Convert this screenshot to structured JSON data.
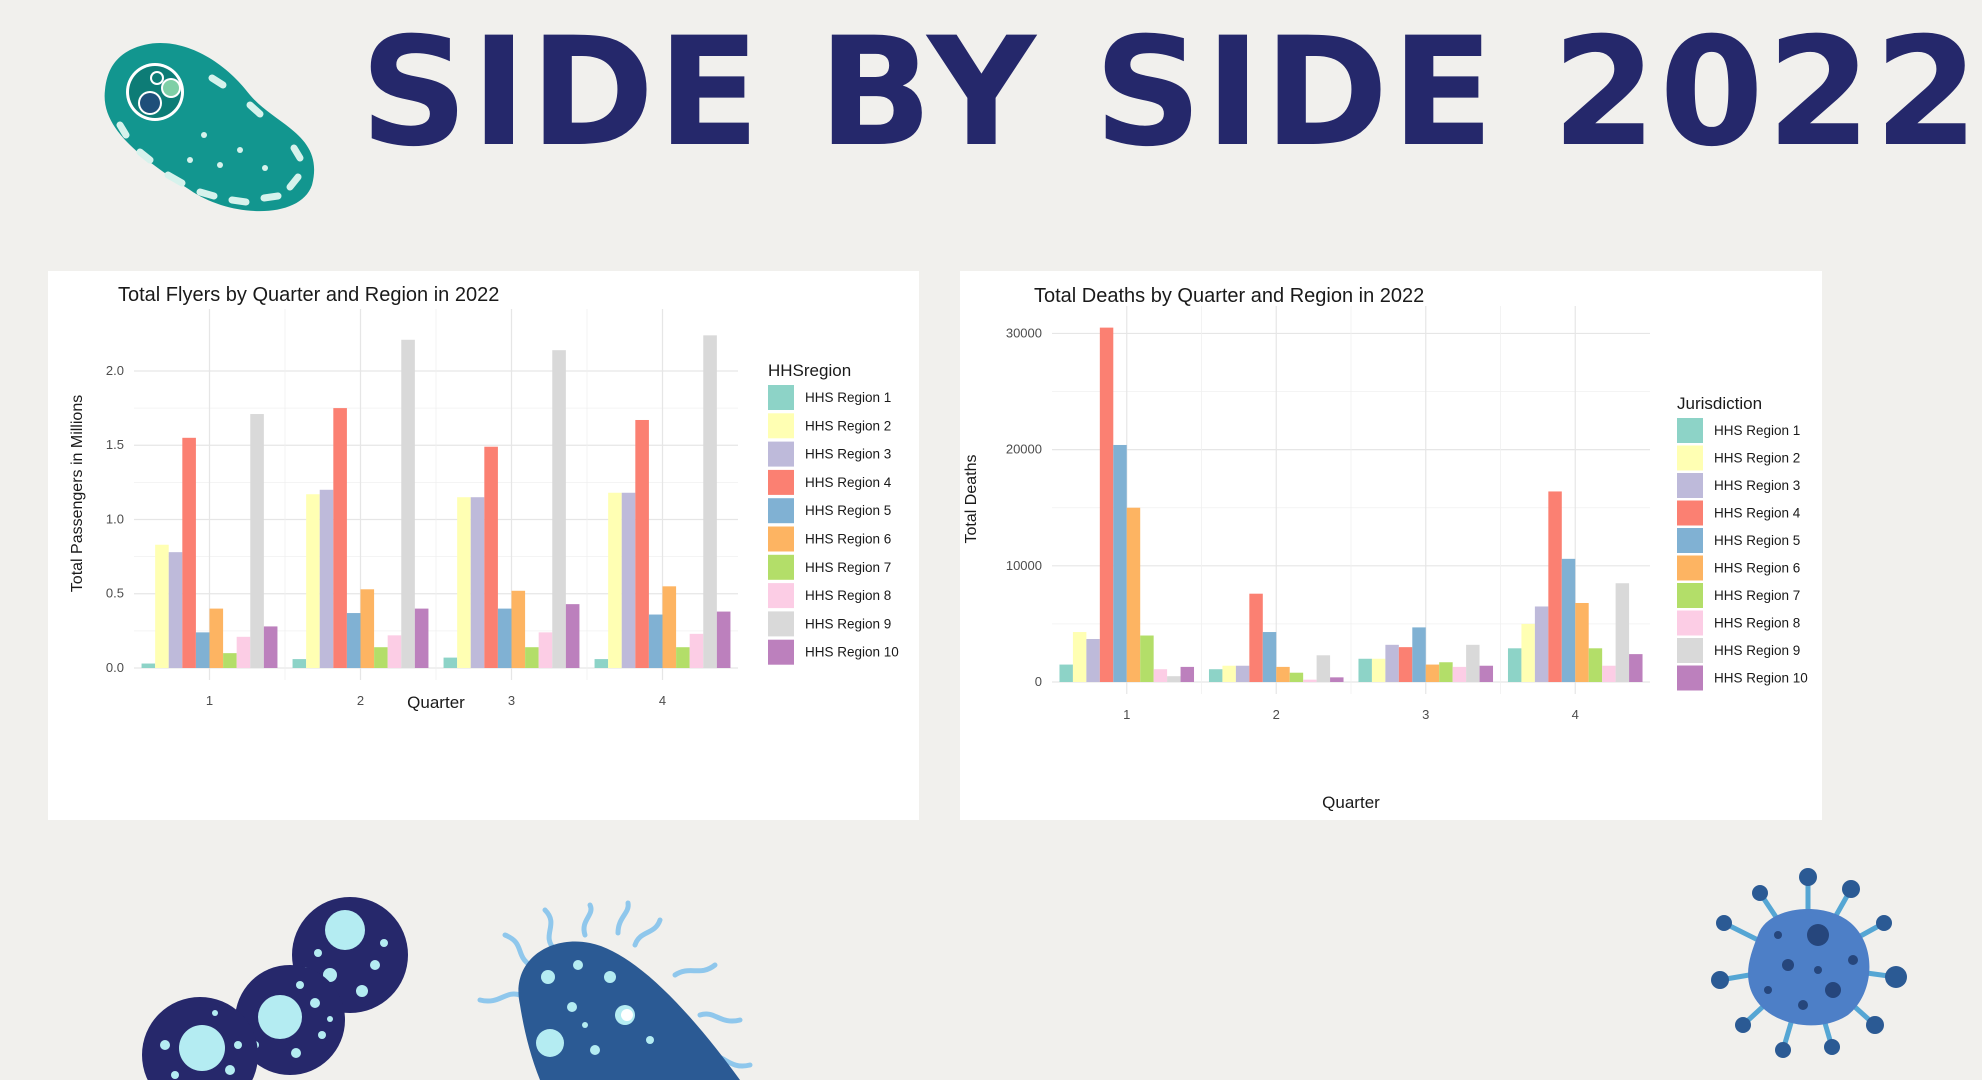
{
  "page": {
    "title": "SIDE BY SIDE 2022"
  },
  "chart_data": [
    {
      "type": "bar",
      "title": "Total Flyers by Quarter and Region in 2022",
      "xlabel": "Quarter",
      "ylabel": "Total Passengers in Millions",
      "categories": [
        "1",
        "2",
        "3",
        "4"
      ],
      "ylim": [
        0,
        2.35
      ],
      "yticks": [
        "0.0",
        "0.5",
        "1.0",
        "1.5",
        "2.0"
      ],
      "grid": true,
      "legend_title": "HHSregion",
      "legend_position": "right",
      "series": [
        {
          "name": "HHS Region 1",
          "color": "#8dd3c7",
          "values": [
            0.03,
            0.06,
            0.07,
            0.06
          ]
        },
        {
          "name": "HHS Region 2",
          "color": "#ffffb3",
          "values": [
            0.83,
            1.17,
            1.15,
            1.18
          ]
        },
        {
          "name": "HHS Region 3",
          "color": "#bebada",
          "values": [
            0.78,
            1.2,
            1.15,
            1.18
          ]
        },
        {
          "name": "HHS Region 4",
          "color": "#fb8072",
          "values": [
            1.55,
            1.75,
            1.49,
            1.67
          ]
        },
        {
          "name": "HHS Region 5",
          "color": "#80b1d3",
          "values": [
            0.24,
            0.37,
            0.4,
            0.36
          ]
        },
        {
          "name": "HHS Region 6",
          "color": "#fdb462",
          "values": [
            0.4,
            0.53,
            0.52,
            0.55
          ]
        },
        {
          "name": "HHS Region 7",
          "color": "#b3de69",
          "values": [
            0.1,
            0.14,
            0.14,
            0.14
          ]
        },
        {
          "name": "HHS Region 8",
          "color": "#fccde5",
          "values": [
            0.21,
            0.22,
            0.24,
            0.23
          ]
        },
        {
          "name": "HHS Region 9",
          "color": "#d9d9d9",
          "values": [
            1.71,
            2.21,
            2.14,
            2.24
          ]
        },
        {
          "name": "HHS Region 10",
          "color": "#bc80bd",
          "values": [
            0.28,
            0.4,
            0.43,
            0.38
          ]
        }
      ]
    },
    {
      "type": "bar",
      "title": "Total Deaths by Quarter and Region in 2022",
      "xlabel": "Quarter",
      "ylabel": "Total Deaths",
      "categories": [
        "1",
        "2",
        "3",
        "4"
      ],
      "ylim": [
        0,
        31500
      ],
      "yticks": [
        "0",
        "10000",
        "20000",
        "30000"
      ],
      "grid": true,
      "legend_title": "Jurisdiction",
      "legend_position": "right",
      "series": [
        {
          "name": "HHS Region 1",
          "color": "#8dd3c7",
          "values": [
            1500,
            1100,
            2000,
            2900
          ]
        },
        {
          "name": "HHS Region 2",
          "color": "#ffffb3",
          "values": [
            4300,
            1400,
            2000,
            5000
          ]
        },
        {
          "name": "HHS Region 3",
          "color": "#bebada",
          "values": [
            3700,
            1400,
            3200,
            6500
          ]
        },
        {
          "name": "HHS Region 4",
          "color": "#fb8072",
          "values": [
            30500,
            7600,
            3000,
            16400
          ]
        },
        {
          "name": "HHS Region 5",
          "color": "#80b1d3",
          "values": [
            20400,
            4300,
            4700,
            10600
          ]
        },
        {
          "name": "HHS Region 6",
          "color": "#fdb462",
          "values": [
            15000,
            1300,
            1500,
            6800
          ]
        },
        {
          "name": "HHS Region 7",
          "color": "#b3de69",
          "values": [
            4000,
            800,
            1700,
            2900
          ]
        },
        {
          "name": "HHS Region 8",
          "color": "#fccde5",
          "values": [
            1100,
            200,
            1300,
            1400
          ]
        },
        {
          "name": "HHS Region 9",
          "color": "#d9d9d9",
          "values": [
            500,
            2300,
            3200,
            8500
          ]
        },
        {
          "name": "HHS Region 10",
          "color": "#bc80bd",
          "values": [
            1300,
            400,
            1400,
            2400
          ]
        }
      ]
    }
  ]
}
